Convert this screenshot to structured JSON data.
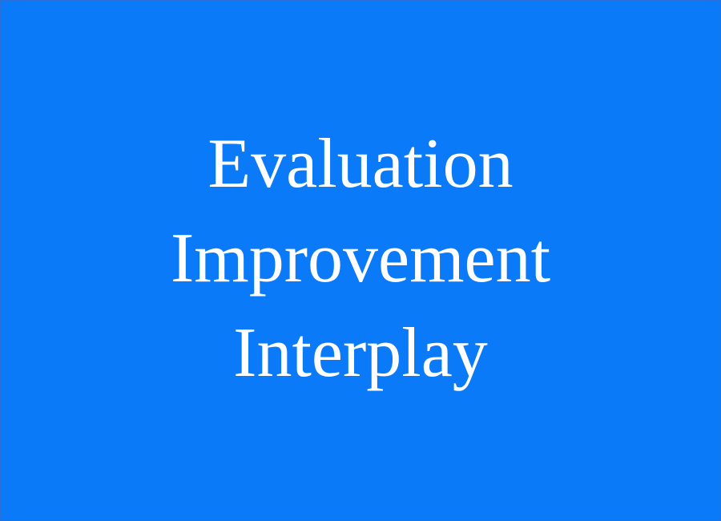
{
  "colors": {
    "background": "#0a7af8",
    "text": "#ffffff"
  },
  "title": {
    "lines": [
      "Evaluation",
      "Improvement",
      "Interplay"
    ]
  }
}
